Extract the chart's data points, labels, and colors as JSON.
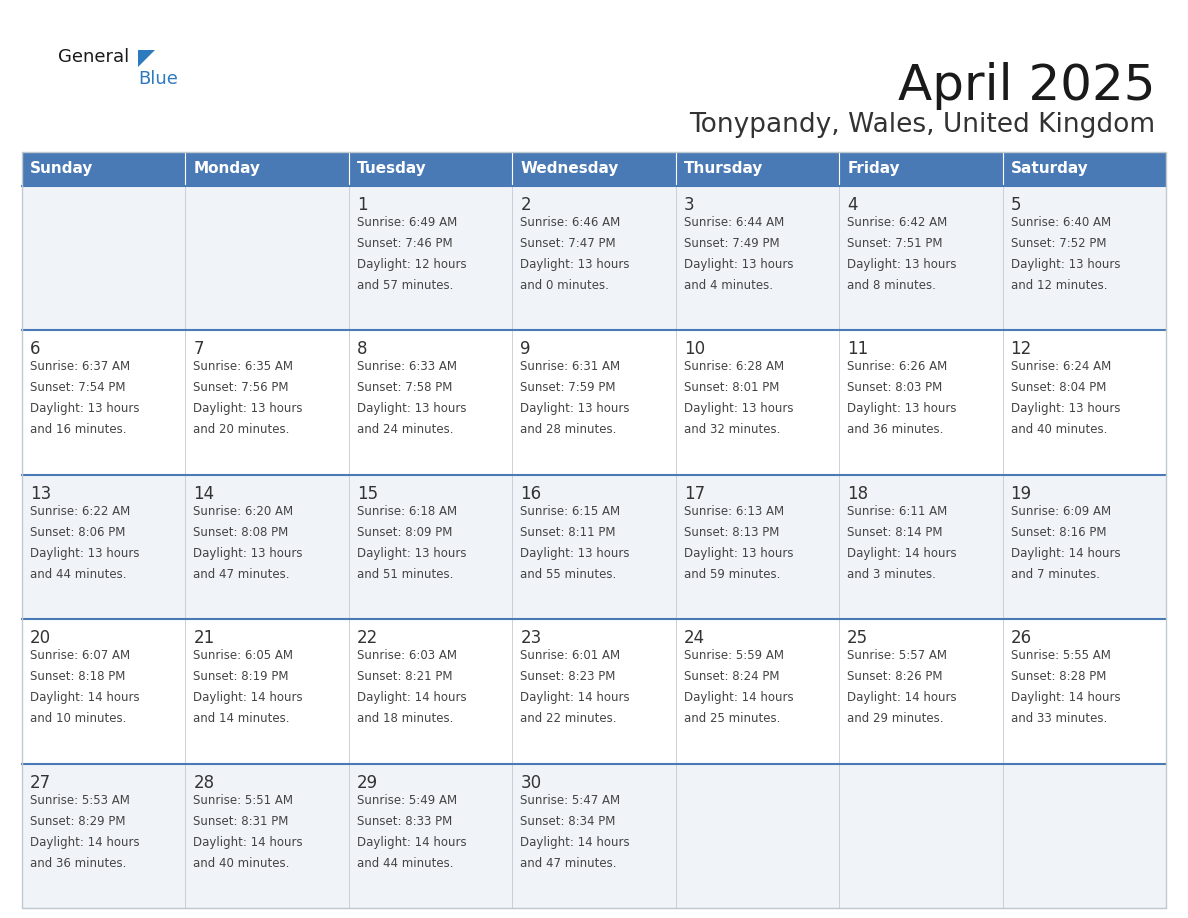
{
  "title": "April 2025",
  "subtitle": "Tonypandy, Wales, United Kingdom",
  "header_bg_color": "#4a7ab5",
  "header_text_color": "#ffffff",
  "cell_bg_color_light": "#f0f4f8",
  "cell_bg_color_white": "#ffffff",
  "border_color": "#c0c8d0",
  "week_sep_color": "#4a7ab5",
  "text_color": "#444444",
  "day_number_color": "#333333",
  "title_color": "#1a1a1a",
  "subtitle_color": "#333333",
  "logo_black": "#1a1a1a",
  "logo_blue": "#2e7abf",
  "days_of_week": [
    "Sunday",
    "Monday",
    "Tuesday",
    "Wednesday",
    "Thursday",
    "Friday",
    "Saturday"
  ],
  "weeks": [
    [
      {
        "day": "",
        "lines": []
      },
      {
        "day": "",
        "lines": []
      },
      {
        "day": "1",
        "lines": [
          "Sunrise: 6:49 AM",
          "Sunset: 7:46 PM",
          "Daylight: 12 hours",
          "and 57 minutes."
        ]
      },
      {
        "day": "2",
        "lines": [
          "Sunrise: 6:46 AM",
          "Sunset: 7:47 PM",
          "Daylight: 13 hours",
          "and 0 minutes."
        ]
      },
      {
        "day": "3",
        "lines": [
          "Sunrise: 6:44 AM",
          "Sunset: 7:49 PM",
          "Daylight: 13 hours",
          "and 4 minutes."
        ]
      },
      {
        "day": "4",
        "lines": [
          "Sunrise: 6:42 AM",
          "Sunset: 7:51 PM",
          "Daylight: 13 hours",
          "and 8 minutes."
        ]
      },
      {
        "day": "5",
        "lines": [
          "Sunrise: 6:40 AM",
          "Sunset: 7:52 PM",
          "Daylight: 13 hours",
          "and 12 minutes."
        ]
      }
    ],
    [
      {
        "day": "6",
        "lines": [
          "Sunrise: 6:37 AM",
          "Sunset: 7:54 PM",
          "Daylight: 13 hours",
          "and 16 minutes."
        ]
      },
      {
        "day": "7",
        "lines": [
          "Sunrise: 6:35 AM",
          "Sunset: 7:56 PM",
          "Daylight: 13 hours",
          "and 20 minutes."
        ]
      },
      {
        "day": "8",
        "lines": [
          "Sunrise: 6:33 AM",
          "Sunset: 7:58 PM",
          "Daylight: 13 hours",
          "and 24 minutes."
        ]
      },
      {
        "day": "9",
        "lines": [
          "Sunrise: 6:31 AM",
          "Sunset: 7:59 PM",
          "Daylight: 13 hours",
          "and 28 minutes."
        ]
      },
      {
        "day": "10",
        "lines": [
          "Sunrise: 6:28 AM",
          "Sunset: 8:01 PM",
          "Daylight: 13 hours",
          "and 32 minutes."
        ]
      },
      {
        "day": "11",
        "lines": [
          "Sunrise: 6:26 AM",
          "Sunset: 8:03 PM",
          "Daylight: 13 hours",
          "and 36 minutes."
        ]
      },
      {
        "day": "12",
        "lines": [
          "Sunrise: 6:24 AM",
          "Sunset: 8:04 PM",
          "Daylight: 13 hours",
          "and 40 minutes."
        ]
      }
    ],
    [
      {
        "day": "13",
        "lines": [
          "Sunrise: 6:22 AM",
          "Sunset: 8:06 PM",
          "Daylight: 13 hours",
          "and 44 minutes."
        ]
      },
      {
        "day": "14",
        "lines": [
          "Sunrise: 6:20 AM",
          "Sunset: 8:08 PM",
          "Daylight: 13 hours",
          "and 47 minutes."
        ]
      },
      {
        "day": "15",
        "lines": [
          "Sunrise: 6:18 AM",
          "Sunset: 8:09 PM",
          "Daylight: 13 hours",
          "and 51 minutes."
        ]
      },
      {
        "day": "16",
        "lines": [
          "Sunrise: 6:15 AM",
          "Sunset: 8:11 PM",
          "Daylight: 13 hours",
          "and 55 minutes."
        ]
      },
      {
        "day": "17",
        "lines": [
          "Sunrise: 6:13 AM",
          "Sunset: 8:13 PM",
          "Daylight: 13 hours",
          "and 59 minutes."
        ]
      },
      {
        "day": "18",
        "lines": [
          "Sunrise: 6:11 AM",
          "Sunset: 8:14 PM",
          "Daylight: 14 hours",
          "and 3 minutes."
        ]
      },
      {
        "day": "19",
        "lines": [
          "Sunrise: 6:09 AM",
          "Sunset: 8:16 PM",
          "Daylight: 14 hours",
          "and 7 minutes."
        ]
      }
    ],
    [
      {
        "day": "20",
        "lines": [
          "Sunrise: 6:07 AM",
          "Sunset: 8:18 PM",
          "Daylight: 14 hours",
          "and 10 minutes."
        ]
      },
      {
        "day": "21",
        "lines": [
          "Sunrise: 6:05 AM",
          "Sunset: 8:19 PM",
          "Daylight: 14 hours",
          "and 14 minutes."
        ]
      },
      {
        "day": "22",
        "lines": [
          "Sunrise: 6:03 AM",
          "Sunset: 8:21 PM",
          "Daylight: 14 hours",
          "and 18 minutes."
        ]
      },
      {
        "day": "23",
        "lines": [
          "Sunrise: 6:01 AM",
          "Sunset: 8:23 PM",
          "Daylight: 14 hours",
          "and 22 minutes."
        ]
      },
      {
        "day": "24",
        "lines": [
          "Sunrise: 5:59 AM",
          "Sunset: 8:24 PM",
          "Daylight: 14 hours",
          "and 25 minutes."
        ]
      },
      {
        "day": "25",
        "lines": [
          "Sunrise: 5:57 AM",
          "Sunset: 8:26 PM",
          "Daylight: 14 hours",
          "and 29 minutes."
        ]
      },
      {
        "day": "26",
        "lines": [
          "Sunrise: 5:55 AM",
          "Sunset: 8:28 PM",
          "Daylight: 14 hours",
          "and 33 minutes."
        ]
      }
    ],
    [
      {
        "day": "27",
        "lines": [
          "Sunrise: 5:53 AM",
          "Sunset: 8:29 PM",
          "Daylight: 14 hours",
          "and 36 minutes."
        ]
      },
      {
        "day": "28",
        "lines": [
          "Sunrise: 5:51 AM",
          "Sunset: 8:31 PM",
          "Daylight: 14 hours",
          "and 40 minutes."
        ]
      },
      {
        "day": "29",
        "lines": [
          "Sunrise: 5:49 AM",
          "Sunset: 8:33 PM",
          "Daylight: 14 hours",
          "and 44 minutes."
        ]
      },
      {
        "day": "30",
        "lines": [
          "Sunrise: 5:47 AM",
          "Sunset: 8:34 PM",
          "Daylight: 14 hours",
          "and 47 minutes."
        ]
      },
      {
        "day": "",
        "lines": []
      },
      {
        "day": "",
        "lines": []
      },
      {
        "day": "",
        "lines": []
      }
    ]
  ]
}
